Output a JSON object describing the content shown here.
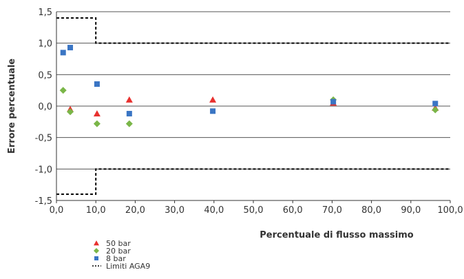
{
  "chart_data": {
    "type": "scatter",
    "title": "",
    "xlabel": "Percentuale di flusso massimo",
    "ylabel": "Errore percentuale",
    "xlim": [
      0,
      100
    ],
    "ylim": [
      -1.5,
      1.5
    ],
    "x_ticks": [
      0,
      10,
      20,
      30,
      40,
      50,
      60,
      70,
      80,
      90,
      100
    ],
    "x_tick_labels": [
      "0,0",
      "10,0",
      "20,0",
      "30,0",
      "40,0",
      "50,0",
      "60,0",
      "70,0",
      "80,0",
      "90,0",
      "100,0"
    ],
    "y_ticks": [
      1.5,
      1.0,
      0.5,
      0.0,
      -0.5,
      -1.0,
      -1.5
    ],
    "y_tick_labels": [
      "1,5",
      "1,0",
      "0,5",
      "0,0",
      "-0,5",
      "-1,0",
      "-1,5"
    ],
    "grid": "horizontal",
    "legend_position": "bottom-left",
    "series": [
      {
        "name": "50 bar",
        "marker": "triangle",
        "color": "#e8312f",
        "points": [
          [
            3.5,
            -0.05
          ],
          [
            10.3,
            -0.12
          ],
          [
            18.5,
            0.1
          ],
          [
            39.7,
            0.1
          ],
          [
            70.3,
            0.05
          ],
          [
            96.2,
            -0.03
          ]
        ]
      },
      {
        "name": "20 bar",
        "marker": "diamond",
        "color": "#7ab648",
        "points": [
          [
            1.7,
            0.25
          ],
          [
            3.5,
            -0.09
          ],
          [
            10.3,
            -0.28
          ],
          [
            18.5,
            -0.28
          ],
          [
            70.3,
            0.1
          ],
          [
            96.2,
            -0.06
          ]
        ]
      },
      {
        "name": "8 bar",
        "marker": "square",
        "color": "#3a75c4",
        "points": [
          [
            1.7,
            0.85
          ],
          [
            3.5,
            0.93
          ],
          [
            10.3,
            0.35
          ],
          [
            18.5,
            -0.12
          ],
          [
            39.7,
            -0.08
          ],
          [
            70.3,
            0.07
          ],
          [
            96.2,
            0.04
          ]
        ]
      }
    ],
    "limits": {
      "name": "Limiti AGA9",
      "style": "dashed",
      "color": "#000000",
      "upper": [
        [
          0,
          1.4
        ],
        [
          10,
          1.4
        ],
        [
          10,
          1.0
        ],
        [
          100,
          1.0
        ]
      ],
      "lower": [
        [
          0,
          -1.4
        ],
        [
          10,
          -1.4
        ],
        [
          10,
          -1.0
        ],
        [
          100,
          -1.0
        ]
      ]
    }
  }
}
